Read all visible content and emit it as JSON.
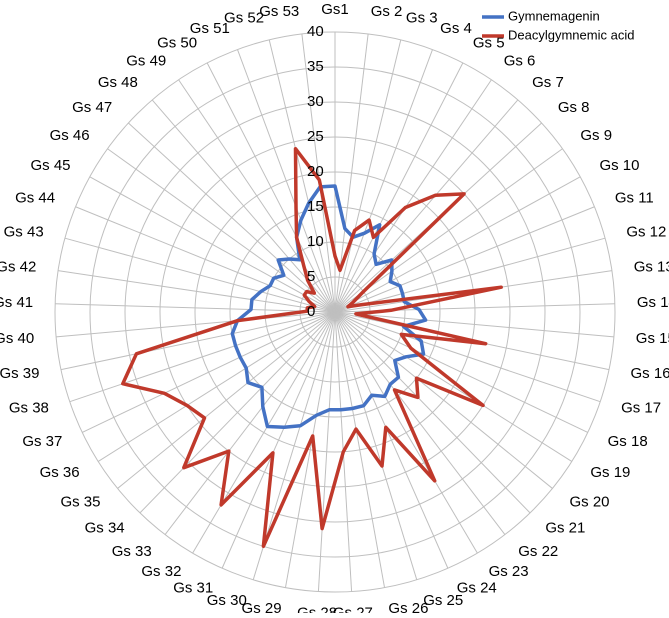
{
  "chart_data": {
    "type": "radar",
    "categories": [
      "Gs1",
      "Gs 2",
      "Gs 3",
      "Gs 4",
      "Gs 5",
      "Gs 6",
      "Gs 7",
      "Gs 8",
      "Gs 9",
      "Gs 10",
      "Gs 11",
      "Gs 12",
      "Gs 13",
      "Gs 14",
      "Gs 15",
      "Gs 16",
      "Gs 17",
      "Gs 18",
      "Gs 19",
      "Gs 20",
      "Gs 21",
      "Gs 22",
      "Gs 23",
      "Gs 24",
      "Gs 25",
      "Gs 26",
      "Gs 27",
      "Gs 28",
      "Gs 29",
      "Gs 30",
      "Gs 31",
      "Gs 32",
      "Gs 33",
      "Gs 34",
      "Gs 35",
      "Gs 36",
      "Gs 37",
      "Gs 38",
      "Gs 39",
      "Gs 40",
      "Gs 41",
      "Gs 42",
      "Gs 43",
      "Gs 44",
      "Gs 45",
      "Gs 46",
      "Gs 47",
      "Gs 48",
      "Gs 49",
      "Gs 50",
      "Gs 51",
      "Gs 52",
      "Gs 53"
    ],
    "series": [
      {
        "name": "Gymnemagenin",
        "color": "#4472c4",
        "values": [
          18,
          12,
          11,
          12,
          14,
          10,
          9,
          11,
          10,
          9,
          10,
          10,
          10,
          12,
          13,
          10,
          13,
          14,
          12,
          11,
          13,
          13,
          14,
          13,
          14,
          14,
          14,
          14,
          15,
          17,
          18,
          19,
          17,
          15,
          16,
          15,
          15,
          15,
          15,
          14,
          12,
          12,
          11,
          10,
          10,
          9,
          11,
          10,
          9,
          12,
          14,
          16,
          18
        ]
      },
      {
        "name": "Deacylgymnemic acid",
        "color": "#c0392b",
        "values": [
          8,
          6,
          12,
          14,
          12,
          18,
          22,
          25,
          5,
          3,
          2,
          4,
          24,
          8,
          3,
          22,
          10,
          12,
          25,
          15,
          17,
          14,
          28,
          18,
          23,
          17,
          20,
          31,
          18,
          35,
          22,
          32,
          25,
          31,
          24,
          25,
          27,
          32,
          29,
          14,
          4,
          4,
          3,
          4,
          5,
          5,
          4,
          6,
          8,
          12,
          16,
          24,
          19
        ]
      }
    ],
    "rlim": [
      0,
      40
    ],
    "rticks": [
      0,
      5,
      10,
      15,
      20,
      25,
      30,
      35,
      40
    ],
    "grid": true,
    "legend": "top-right"
  }
}
